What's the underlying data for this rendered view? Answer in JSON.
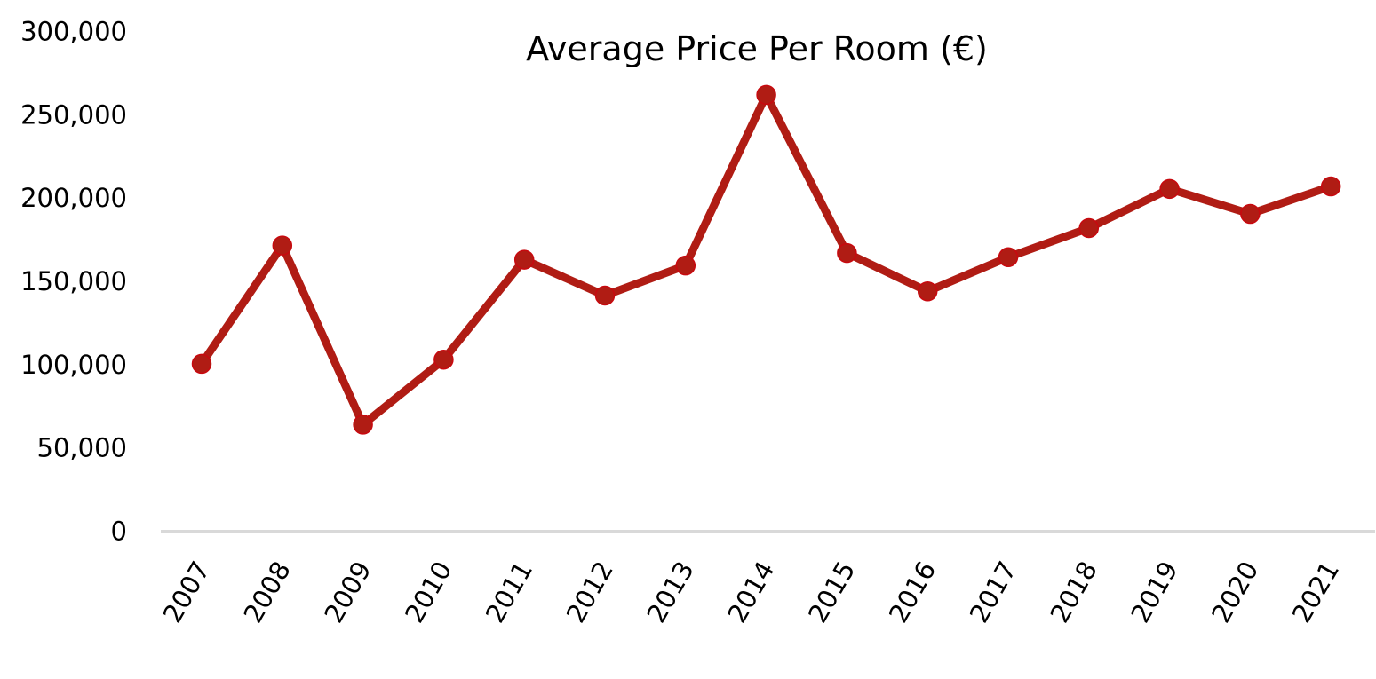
{
  "chart_data": {
    "type": "line",
    "title": "Average Price Per Room (€)",
    "xlabel": "",
    "ylabel": "",
    "categories": [
      "2007",
      "2008",
      "2009",
      "2010",
      "2011",
      "2012",
      "2013",
      "2014",
      "2015",
      "2016",
      "2017",
      "2018",
      "2019",
      "2020",
      "2021"
    ],
    "series": [
      {
        "name": "Average Price Per Room (€)",
        "values": [
          100500,
          171500,
          64000,
          103000,
          163000,
          141500,
          159500,
          262000,
          167000,
          144000,
          164500,
          182000,
          205500,
          190500,
          207000
        ],
        "color": "#b01c14",
        "marker_stroke": "#c8090f"
      }
    ],
    "ylim": [
      0,
      300000
    ],
    "yticks": [
      0,
      50000,
      100000,
      150000,
      200000,
      250000,
      300000
    ],
    "ytick_labels": [
      "0",
      "50,000",
      "100,000",
      "150,000",
      "200,000",
      "250,000",
      "300,000"
    ],
    "grid": false,
    "legend": "none",
    "axis_color": "#d9d9d9"
  }
}
